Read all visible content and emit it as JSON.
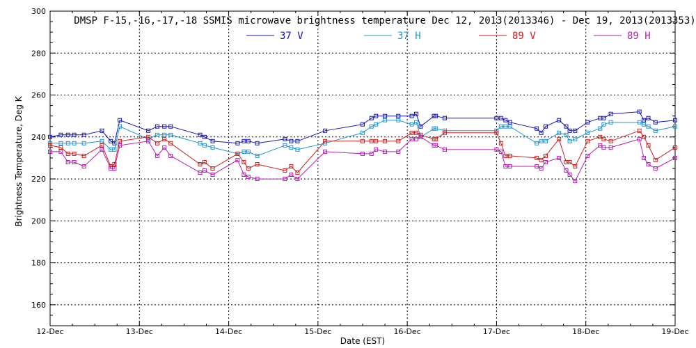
{
  "chart_data": {
    "type": "line",
    "title": "DMSP F-15,-16,-17,-18 SSMIS microwave brightness temperature Dec 12, 2013(2013346) - Dec 19, 2013(2013353)",
    "xlabel": "Date (EST)",
    "ylabel": "Brightness Temperature, Deg K",
    "xlim": [
      0,
      7
    ],
    "ylim": [
      150,
      300
    ],
    "x_ticks": [
      0,
      1,
      2,
      3,
      4,
      5,
      6,
      7
    ],
    "x_tick_labels": [
      "12-Dec",
      "13-Dec",
      "14-Dec",
      "15-Dec",
      "16-Dec",
      "17-Dec",
      "18-Dec",
      "19-Dec"
    ],
    "y_ticks": [
      160,
      180,
      200,
      220,
      240,
      260,
      280,
      300
    ],
    "y_tick_labels": [
      "160",
      "180",
      "200",
      "220",
      "240",
      "260",
      "280",
      "300"
    ],
    "grid": "dotted",
    "legend_position": "top-center",
    "series": [
      {
        "name": "37 V",
        "color": "#1414b4",
        "x": [
          0,
          0.12,
          0.2,
          0.27,
          0.38,
          0.58,
          0.68,
          0.72,
          0.78,
          1.1,
          1.2,
          1.28,
          1.35,
          1.68,
          1.73,
          1.82,
          2.1,
          2.17,
          2.22,
          2.32,
          2.63,
          2.7,
          2.77,
          3.08,
          3.5,
          3.6,
          3.65,
          3.75,
          3.9,
          4.05,
          4.1,
          4.15,
          4.3,
          4.32,
          4.42,
          5.0,
          5.05,
          5.1,
          5.15,
          5.45,
          5.5,
          5.55,
          5.7,
          5.78,
          5.82,
          5.88,
          6.02,
          6.16,
          6.2,
          6.28,
          6.6,
          6.65,
          6.7,
          6.78,
          7.0
        ],
        "y": [
          240,
          241,
          241,
          241,
          241,
          243,
          238,
          237,
          248,
          243,
          245,
          245,
          245,
          241,
          240,
          238,
          237,
          238,
          238,
          237,
          239,
          238,
          238,
          243,
          246,
          249,
          250,
          250,
          250,
          250,
          251,
          245,
          250,
          250,
          249,
          249,
          249,
          248,
          247,
          244,
          242,
          245,
          248,
          245,
          243,
          243,
          247,
          249,
          249,
          251,
          252,
          248,
          249,
          247,
          248
        ]
      },
      {
        "name": "37 H",
        "color": "#1e96d2",
        "x": [
          0,
          0.12,
          0.2,
          0.27,
          0.38,
          0.58,
          0.68,
          0.72,
          0.78,
          1.1,
          1.2,
          1.28,
          1.35,
          1.68,
          1.73,
          1.82,
          2.1,
          2.17,
          2.22,
          2.32,
          2.63,
          2.7,
          2.77,
          3.08,
          3.5,
          3.6,
          3.65,
          3.75,
          3.9,
          4.05,
          4.1,
          4.15,
          4.3,
          4.32,
          4.42,
          5.0,
          5.05,
          5.1,
          5.15,
          5.45,
          5.5,
          5.55,
          5.7,
          5.78,
          5.82,
          5.88,
          6.02,
          6.16,
          6.2,
          6.28,
          6.6,
          6.65,
          6.7,
          6.78,
          7.0
        ],
        "y": [
          237,
          237,
          237,
          237,
          237,
          238,
          234,
          234,
          245,
          239,
          241,
          241,
          241,
          237,
          236,
          235,
          232,
          233,
          233,
          231,
          236,
          235,
          234,
          237,
          242,
          245,
          246,
          248,
          248,
          246,
          247,
          240,
          244,
          244,
          243,
          243,
          245,
          245,
          245,
          237,
          238,
          238,
          242,
          241,
          238,
          239,
          242,
          244,
          246,
          247,
          247,
          246,
          245,
          243,
          245
        ]
      },
      {
        "name": "89 V",
        "color": "#d21e1e",
        "x": [
          0,
          0.12,
          0.2,
          0.27,
          0.38,
          0.58,
          0.68,
          0.72,
          0.78,
          1.1,
          1.2,
          1.28,
          1.35,
          1.68,
          1.73,
          1.82,
          2.1,
          2.17,
          2.22,
          2.32,
          2.63,
          2.7,
          2.77,
          3.08,
          3.5,
          3.6,
          3.65,
          3.75,
          3.9,
          4.05,
          4.1,
          4.15,
          4.3,
          4.32,
          4.42,
          5.0,
          5.05,
          5.1,
          5.15,
          5.45,
          5.5,
          5.55,
          5.7,
          5.78,
          5.82,
          5.88,
          6.02,
          6.16,
          6.2,
          6.28,
          6.6,
          6.65,
          6.7,
          6.78,
          7.0
        ],
        "y": [
          236,
          235,
          232,
          232,
          231,
          236,
          226,
          227,
          238,
          240,
          237,
          239,
          237,
          227,
          228,
          225,
          232,
          228,
          225,
          227,
          224,
          226,
          223,
          238,
          238,
          238,
          238,
          238,
          238,
          242,
          242,
          241,
          239,
          239,
          242,
          242,
          237,
          231,
          231,
          230,
          229,
          231,
          239,
          228,
          228,
          226,
          238,
          240,
          239,
          238,
          243,
          240,
          236,
          229,
          235
        ]
      },
      {
        "name": "89 H",
        "color": "#b41eb4",
        "x": [
          0,
          0.12,
          0.2,
          0.27,
          0.38,
          0.58,
          0.68,
          0.72,
          0.78,
          1.1,
          1.2,
          1.28,
          1.35,
          1.68,
          1.73,
          1.82,
          2.1,
          2.17,
          2.22,
          2.32,
          2.63,
          2.7,
          2.77,
          3.08,
          3.5,
          3.6,
          3.65,
          3.75,
          3.9,
          4.05,
          4.1,
          4.15,
          4.3,
          4.32,
          4.42,
          5.0,
          5.05,
          5.1,
          5.15,
          5.45,
          5.5,
          5.55,
          5.7,
          5.78,
          5.82,
          5.88,
          6.02,
          6.16,
          6.2,
          6.28,
          6.6,
          6.65,
          6.7,
          6.78,
          7.0
        ],
        "y": [
          233,
          233,
          228,
          228,
          226,
          234,
          225,
          225,
          236,
          238,
          231,
          235,
          231,
          223,
          224,
          222,
          229,
          222,
          221,
          220,
          220,
          222,
          220,
          233,
          232,
          232,
          234,
          233,
          233,
          239,
          239,
          240,
          236,
          236,
          234,
          234,
          233,
          226,
          226,
          226,
          225,
          228,
          230,
          224,
          222,
          219,
          231,
          236,
          235,
          235,
          239,
          230,
          227,
          225,
          230
        ]
      }
    ]
  }
}
